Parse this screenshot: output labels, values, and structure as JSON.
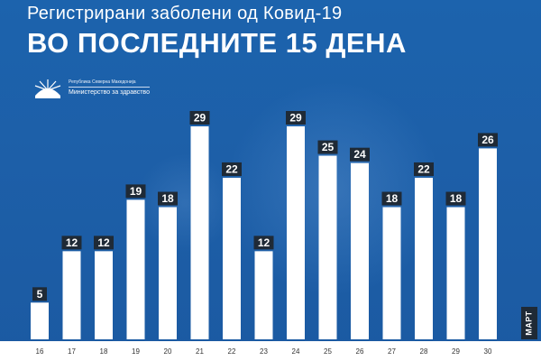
{
  "title": {
    "line1": "Регистрирани заболени од Ковид-19",
    "line2": "ВО ПОСЛЕДНИТЕ 15 ДЕНА"
  },
  "logo": {
    "republic": "Република Северна Македонија",
    "ministry": "Министерство за здравство"
  },
  "colors": {
    "background": "#1c63ad",
    "bar": "#ffffff",
    "label_box": "#1f2a36",
    "label_text": "#ffffff"
  },
  "chart_data": {
    "type": "bar",
    "categories": [
      "16",
      "17",
      "18",
      "19",
      "20",
      "21",
      "22",
      "23",
      "24",
      "25",
      "26",
      "27",
      "28",
      "29",
      "30"
    ],
    "values": [
      5,
      12,
      12,
      19,
      18,
      29,
      22,
      12,
      29,
      25,
      24,
      18,
      22,
      18,
      26
    ],
    "title": "ВО ПОСЛЕДНИТЕ 15 ДЕНА",
    "xlabel": "МАРТ",
    "ylabel": "",
    "ylim": [
      0,
      29
    ],
    "grid": false,
    "legend": "none",
    "data_labels": true
  }
}
